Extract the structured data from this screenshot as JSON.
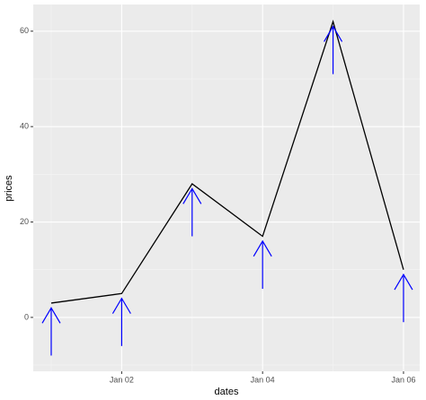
{
  "chart_data": {
    "type": "line",
    "x_label": "dates",
    "y_label": "prices",
    "x": [
      1,
      2,
      3,
      4,
      5,
      6
    ],
    "series": [
      {
        "color": "#000000",
        "values": [
          3,
          5,
          28,
          17,
          62,
          10
        ]
      }
    ],
    "arrows": {
      "color": "#0000ff",
      "from": [
        -8,
        -6,
        17,
        6,
        51,
        -1
      ],
      "to": [
        2,
        4,
        27,
        16,
        61,
        9
      ]
    },
    "xlim": [
      0.745,
      6.23
    ],
    "xticks": [
      {
        "value": 2,
        "label": "Jan 02"
      },
      {
        "value": 4,
        "label": "Jan 04"
      },
      {
        "value": 6,
        "label": "Jan 06"
      }
    ],
    "xminor": [
      1,
      3,
      5
    ],
    "ylim": [
      -11.3,
      65.6
    ],
    "yticks": [
      0,
      20,
      40,
      60
    ],
    "yminor": [
      -10,
      10,
      30,
      50
    ],
    "grid": true
  }
}
